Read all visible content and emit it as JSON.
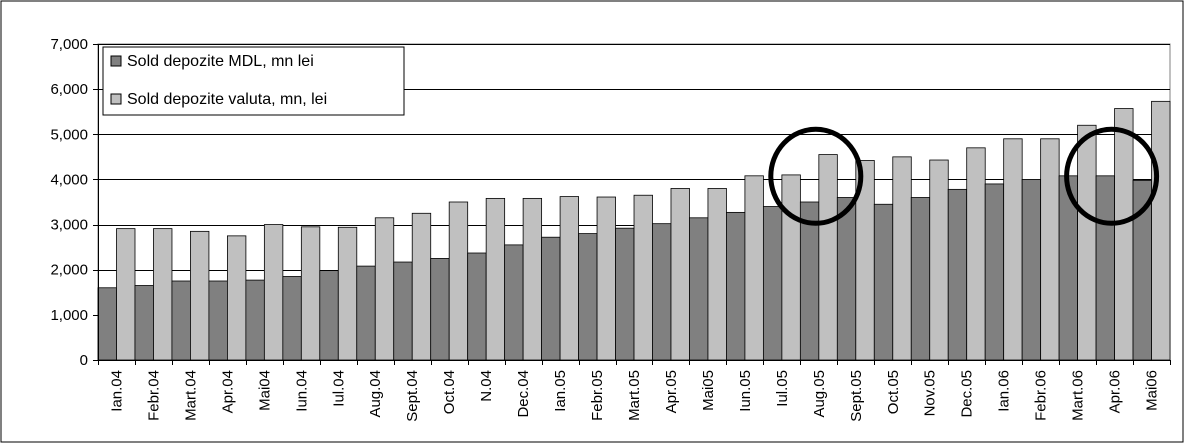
{
  "chart_data": {
    "type": "bar",
    "categories": [
      "Ian.04",
      "Febr.04",
      "Mart.04",
      "Apr.04",
      "Mai04",
      "Iun.04",
      "Iul.04",
      "Aug.04",
      "Sept.04",
      "Oct.04",
      "N.04",
      "Dec.04",
      "Ian.05",
      "Febr.05",
      "Mart.05",
      "Apr.05",
      "Mai05",
      "Iun.05",
      "Iul.05",
      "Aug.05",
      "Sept.05",
      "Oct.05",
      "Nov.05",
      "Dec.05",
      "Ian.06",
      "Febr.06",
      "Mart.06",
      "Apr.06",
      "Mai06"
    ],
    "series": [
      {
        "name": "Sold depozite MDL, mn lei",
        "color": "#808080",
        "values": [
          1600,
          1650,
          1750,
          1750,
          1770,
          1850,
          1980,
          2080,
          2170,
          2250,
          2370,
          2550,
          2720,
          2800,
          2920,
          3020,
          3150,
          3270,
          3400,
          3500,
          3600,
          3450,
          3600,
          3780,
          3900,
          4000,
          4080,
          4080,
          3980
        ]
      },
      {
        "name": "Sold depozite valuta, mn, lei",
        "color": "#c0c0c0",
        "values": [
          2910,
          2910,
          2850,
          2750,
          3000,
          2950,
          2940,
          3150,
          3250,
          3500,
          3580,
          3580,
          3620,
          3610,
          3650,
          3800,
          3800,
          4080,
          4100,
          4550,
          4420,
          4500,
          4430,
          4700,
          4900,
          4900,
          5200,
          5570,
          5730
        ]
      }
    ],
    "y_ticks": [
      "0",
      "1,000",
      "2,000",
      "3,000",
      "4,000",
      "5,000",
      "6,000",
      "7,000"
    ],
    "ylim": [
      0,
      7000
    ],
    "grid": "horizontal",
    "legend_position": "top-left",
    "annotations": [
      {
        "type": "circle",
        "category": "Aug.05"
      },
      {
        "type": "circle",
        "category": "Apr.06"
      }
    ]
  }
}
